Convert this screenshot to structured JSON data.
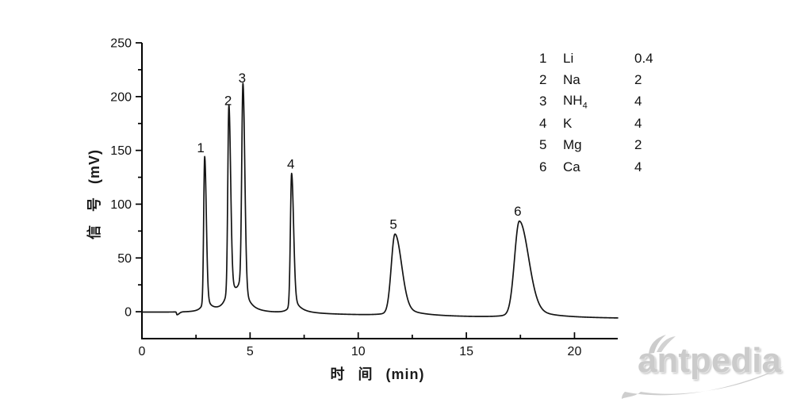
{
  "chart_data": {
    "type": "line",
    "title": "",
    "xlabel": "时 间 (min)",
    "ylabel": "信 号 (mV)",
    "x_unit": "min",
    "y_unit": "mV",
    "xlim": [
      0,
      22
    ],
    "ylim": [
      -25,
      250
    ],
    "x_major_ticks": [
      0,
      5,
      10,
      15,
      20
    ],
    "x_minor_ticks": [
      2.5,
      7.5,
      12.5,
      17.5
    ],
    "y_major_ticks": [
      0,
      50,
      100,
      150,
      200,
      250
    ],
    "y_minor_ticks": [
      25,
      75,
      125,
      175,
      225
    ],
    "grid": false,
    "legend_position": "top-right",
    "line_color": "#141414",
    "axis_color": "#000000",
    "baseline": {
      "start_mV": 0,
      "end_mV": -6.8,
      "drift_mid_min": 10.5,
      "drift_scale_min": 4.2,
      "injection_dip": {
        "time_min": 1.62,
        "depth_mV": -2.6,
        "sigma_left_min": 0.02,
        "sigma_right_min": 0.1
      }
    },
    "peaks": [
      {
        "label": "1",
        "ion": "Li",
        "ion_sub": "",
        "concentration": "0.4",
        "retention_min": 2.9,
        "apex_mV": 143,
        "sigma_left_min": 0.045,
        "sigma_right_min": 0.075,
        "tail_left": 0.06,
        "tail_right": 0.1,
        "tail_width_left_min": 0.18,
        "tail_width_right_min": 0.25,
        "label_dx": -5
      },
      {
        "label": "2",
        "ion": "Na",
        "ion_sub": "",
        "concentration": "2",
        "retention_min": 4.02,
        "apex_mV": 187,
        "sigma_left_min": 0.05,
        "sigma_right_min": 0.08,
        "tail_left": 0.1,
        "tail_right": 0.16,
        "tail_width_left_min": 0.2,
        "tail_width_right_min": 0.28,
        "label_dx": -1
      },
      {
        "label": "3",
        "ion": "NH",
        "ion_sub": "4",
        "concentration": "4",
        "retention_min": 4.67,
        "apex_mV": 208,
        "sigma_left_min": 0.055,
        "sigma_right_min": 0.085,
        "tail_left": 0.16,
        "tail_right": 0.1,
        "tail_width_left_min": 0.28,
        "tail_width_right_min": 0.3,
        "label_dx": -1
      },
      {
        "label": "4",
        "ion": "K",
        "ion_sub": "",
        "concentration": "4",
        "retention_min": 6.92,
        "apex_mV": 128,
        "sigma_left_min": 0.055,
        "sigma_right_min": 0.09,
        "tail_left": 0.06,
        "tail_right": 0.12,
        "tail_width_left_min": 0.2,
        "tail_width_right_min": 0.35,
        "label_dx": -1
      },
      {
        "label": "5",
        "ion": "Mg",
        "ion_sub": "",
        "concentration": "2",
        "retention_min": 11.7,
        "apex_mV": 72,
        "sigma_left_min": 0.17,
        "sigma_right_min": 0.3,
        "tail_left": 0.05,
        "tail_right": 0.12,
        "tail_width_left_min": 0.5,
        "tail_width_right_min": 0.9,
        "label_dx": -2
      },
      {
        "label": "6",
        "ion": "Ca",
        "ion_sub": "",
        "concentration": "4",
        "retention_min": 17.45,
        "apex_mV": 84,
        "sigma_left_min": 0.22,
        "sigma_right_min": 0.42,
        "tail_left": 0.05,
        "tail_right": 0.12,
        "tail_width_left_min": 0.6,
        "tail_width_right_min": 1.1,
        "label_dx": -2
      }
    ]
  },
  "watermark": {
    "text": "antpedia",
    "color": "#cbcbcb"
  }
}
